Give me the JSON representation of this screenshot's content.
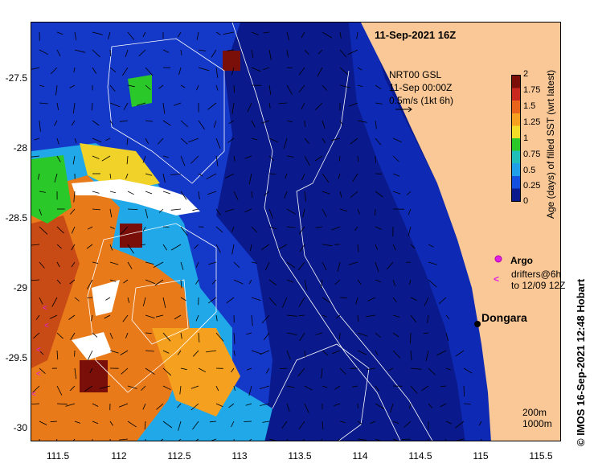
{
  "map": {
    "title": "11-Sep-2021 16Z",
    "y_ticks": [
      "-27.5",
      "-28",
      "-28.5",
      "-29",
      "-29.5",
      "-30"
    ],
    "x_ticks": [
      "111.5",
      "112",
      "112.5",
      "113",
      "113.5",
      "114",
      "114.5",
      "115",
      "115.5"
    ],
    "current_label_1": "NRT00 GSL",
    "current_label_2": "11-Sep 00:00Z",
    "current_label_3": "0.5m/s (1kt 6h)",
    "place_name": "Dongara",
    "argo_label": "Argo",
    "drifters_label_1": "drifters@6h",
    "drifters_label_2": "to 12/09 12Z",
    "depth_label_1": "200m",
    "depth_label_2": "1000m",
    "credit": "© IMOS 16-Sep-2021 12:48 Hobart",
    "land_color": "#fac896",
    "ocean_base_color": "#0a1a8c"
  },
  "colorbar": {
    "title": "Age (days) of filled SST (wrt latest)",
    "ticks": [
      "2",
      "1.75",
      "1.5",
      "1.25",
      "1",
      "0.75",
      "0.5",
      "0.25",
      "0"
    ],
    "colors": [
      "#7a0f0a",
      "#c8281e",
      "#e8641a",
      "#f5a01e",
      "#f2dc28",
      "#2ac828",
      "#20c0b8",
      "#20a0e8",
      "#1450e0",
      "#0a1a8c"
    ]
  }
}
